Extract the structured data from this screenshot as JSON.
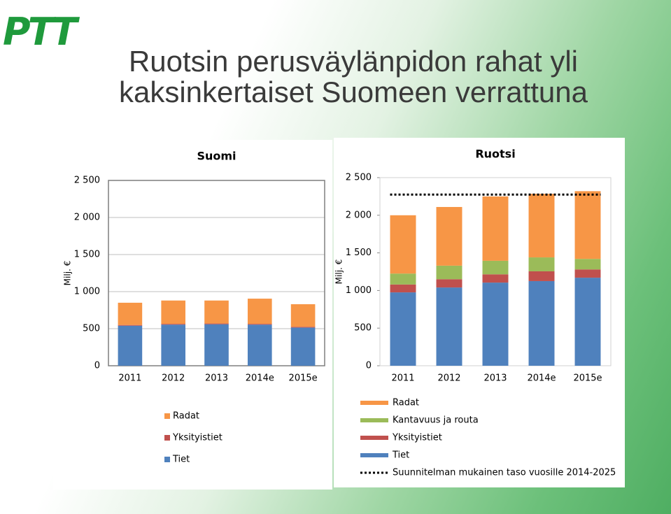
{
  "header": {
    "logo": "PTT",
    "title_lines": [
      "Ruotsin perusväylänpidon rahat yli",
      "kaksinkertaiset Suomeen verrattuna"
    ]
  },
  "chart_data": [
    {
      "type": "bar",
      "stacked": true,
      "title": "Suomi",
      "y_label": "Milj. €",
      "grid": true,
      "categories": [
        "2011",
        "2012",
        "2013",
        "2014e",
        "2015e"
      ],
      "ylim": [
        0,
        2500
      ],
      "yticks": [
        0,
        500,
        {
          "value": 1000,
          "label": "1 000"
        },
        {
          "value": 1500,
          "label": "1 500"
        },
        {
          "value": 2000,
          "label": "2 000"
        },
        {
          "value": 2500,
          "label": "2 500"
        }
      ],
      "series": [
        {
          "name": "Tiet",
          "color": "#4f81bd",
          "values": [
            540,
            555,
            560,
            555,
            515
          ]
        },
        {
          "name": "Yksityistiet",
          "color": "#c0504d",
          "values": [
            10,
            10,
            10,
            10,
            10
          ]
        },
        {
          "name": "Radat",
          "color": "#f79646",
          "values": [
            300,
            315,
            310,
            340,
            305
          ]
        }
      ]
    },
    {
      "type": "bar",
      "stacked": true,
      "title": "Ruotsi",
      "y_label": "Milj. €",
      "grid": false,
      "categories": [
        "2011",
        "2012",
        "2013",
        "2014e",
        "2015e"
      ],
      "ylim": [
        0,
        2500
      ],
      "yticks": [
        0,
        500,
        {
          "value": 1000,
          "label": "1 000"
        },
        {
          "value": 1500,
          "label": "1 500"
        },
        {
          "value": 2000,
          "label": "2 000"
        },
        {
          "value": 2500,
          "label": "2 500"
        }
      ],
      "series": [
        {
          "name": "Tiet",
          "color": "#4f81bd",
          "values": [
            975,
            1040,
            1105,
            1125,
            1170
          ]
        },
        {
          "name": "Yksityistiet",
          "color": "#c0504d",
          "values": [
            105,
            110,
            110,
            130,
            110
          ]
        },
        {
          "name": "Kantavuus ja routa",
          "color": "#9bbb59",
          "values": [
            145,
            180,
            180,
            185,
            140
          ]
        },
        {
          "name": "Radat",
          "color": "#f79646",
          "values": [
            775,
            780,
            855,
            845,
            900
          ]
        }
      ],
      "reference_line": {
        "name": "Suunnitelman mukainen taso vuosille 2014-2025",
        "value": 2275,
        "color": "#000000"
      }
    }
  ]
}
